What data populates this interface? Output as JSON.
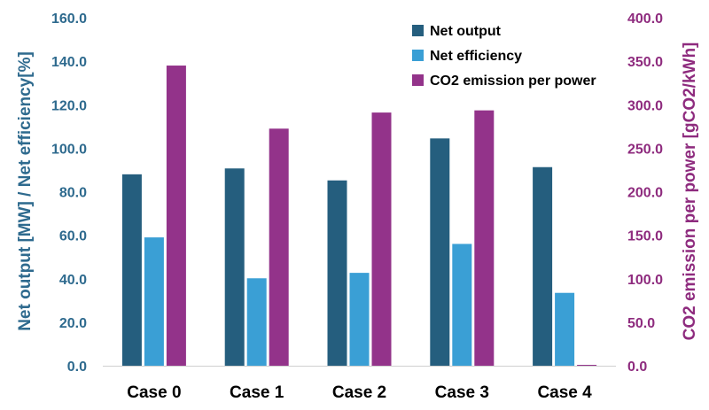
{
  "chart_data": {
    "type": "bar",
    "categories": [
      "Case 0",
      "Case 1",
      "Case 2",
      "Case 3",
      "Case 4"
    ],
    "series": [
      {
        "name": "Net output",
        "axis": "left",
        "color": "#255E7E",
        "values": [
          88.0,
          90.7,
          85.2,
          104.5,
          91.3
        ]
      },
      {
        "name": "Net efficiency",
        "axis": "left",
        "color": "#3A9FD5",
        "values": [
          59.0,
          40.2,
          42.7,
          56.0,
          33.5
        ]
      },
      {
        "name": "CO2 emission per power",
        "axis": "right",
        "color": "#93338A",
        "values": [
          345.0,
          272.5,
          291.0,
          293.5,
          1.0
        ]
      }
    ],
    "ylabel": "Net output [MW] / Net efficiency[%]",
    "y2label": "CO2 emission per power [gCO2/kWh]",
    "ylim": [
      0,
      160
    ],
    "y2lim": [
      0,
      400
    ],
    "yticks": [
      "0.0",
      "20.0",
      "40.0",
      "60.0",
      "80.0",
      "100.0",
      "120.0",
      "140.0",
      "160.0"
    ],
    "y2ticks": [
      "0.0",
      "50.0",
      "100.0",
      "150.0",
      "200.0",
      "250.0",
      "300.0",
      "350.0",
      "400.0"
    ],
    "legend_position": "top-right",
    "grid": false,
    "colors": {
      "left_axis": "#2E6A8E",
      "right_axis": "#8E2B7E"
    }
  }
}
